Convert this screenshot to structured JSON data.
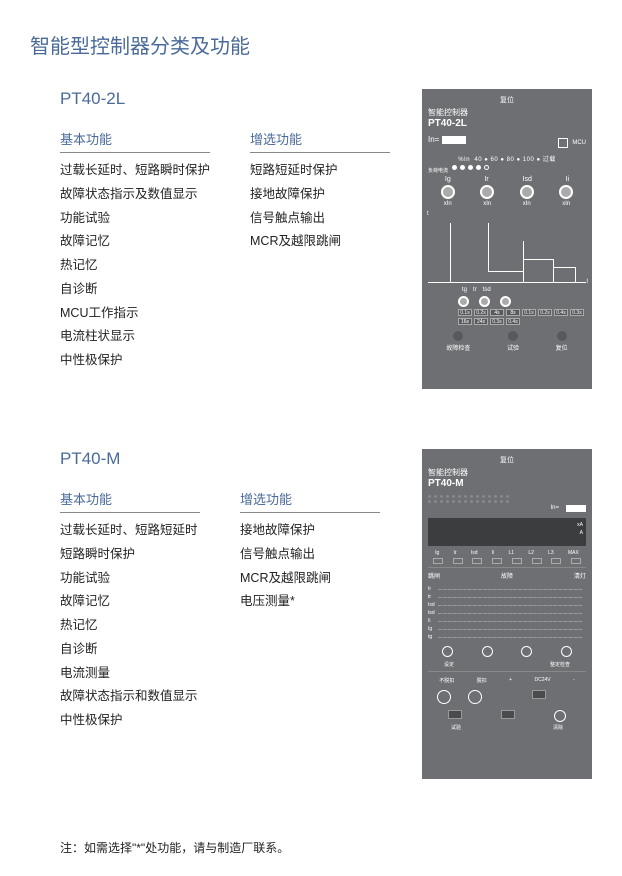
{
  "page": {
    "title": "智能型控制器分类及功能",
    "note": "注：如需选择\"*\"处功能，请与制造厂联系。"
  },
  "colors": {
    "heading": "#4a6a9a",
    "panel_bg": "#6d6f72",
    "panel_text": "#ffffff",
    "body_text": "#222222",
    "rule": "#888888"
  },
  "sections": [
    {
      "model": "PT40-2L",
      "basic_title": "基本功能",
      "optional_title": "增选功能",
      "basic": [
        "过载长延时、短路瞬时保护",
        "故障状态指示及数值显示",
        "功能试验",
        "故障记忆",
        "热记忆",
        "自诊断",
        "MCU工作指示",
        "电流柱状显示",
        "中性极保护"
      ],
      "optional": [
        "短路短延时保护",
        "接地故障保护",
        "信号触点输出",
        "MCR及越限跳闸"
      ],
      "device": {
        "reset": "复位",
        "title": "智能控制器",
        "model": "PT40-2L",
        "in_label": "In=",
        "mcu": "MCU",
        "pct_label": "%In",
        "pct_values": [
          "40",
          "60",
          "80",
          "100",
          "过载"
        ],
        "load_label": "负荷电流",
        "dial_labels": [
          "Ig",
          "Ir",
          "Isd",
          "Ii"
        ],
        "xin": "xIn",
        "axis_labels": {
          "y": "t",
          "x": "I"
        },
        "bottom_dials": [
          "tg",
          "tr",
          "tsd"
        ],
        "tiny_vals": [
          "0.1s",
          "0.2s",
          "4s",
          "8s",
          "0.1s",
          "0.2s",
          "0.4s",
          "0.3s",
          "16s",
          "24s",
          "0.3s",
          "0.4s"
        ],
        "buttons": [
          "故障检查",
          "试验",
          "复位"
        ]
      }
    },
    {
      "model": "PT40-M",
      "basic_title": "基本功能",
      "optional_title": "增选功能",
      "basic": [
        "过载长延时、短路短延时",
        "短路瞬时保护",
        "功能试验",
        "故障记忆",
        "热记忆",
        "自诊断",
        "电流测量",
        "故障状态指示和数值显示",
        "中性极保护"
      ],
      "optional": [
        "接地故障保护",
        "信号触点输出",
        "MCR及越限跳闸",
        "电压测量*"
      ],
      "device": {
        "reset": "复位",
        "title": "智能控制器",
        "model": "PT40-M",
        "in_label": "In=",
        "lcd_units": [
          "xA",
          "A"
        ],
        "meter_row": [
          "Ig",
          "Ir",
          "Isd",
          "Ii",
          "L1",
          "L2",
          "L3",
          "MAX"
        ],
        "section_labels": {
          "left": "跳闸",
          "mid": "故障",
          "right": "清灯"
        },
        "y_ticks": [
          "Ir",
          "tr",
          "Isd",
          "tsd",
          "Ii",
          "Ig",
          "tg"
        ],
        "dial_labels": [
          "设定",
          "",
          "",
          "整定检查"
        ],
        "bottom_labels": [
          "不脱扣",
          "脱扣",
          "+",
          "DC24V",
          "-"
        ],
        "port_labels": [
          "试验",
          "",
          "清除"
        ]
      }
    }
  ]
}
